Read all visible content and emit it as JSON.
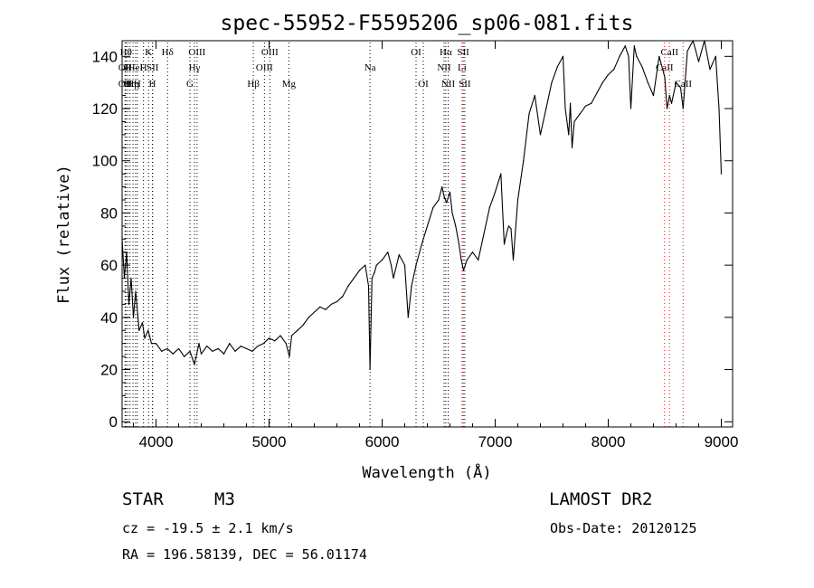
{
  "chart_data": {
    "type": "line",
    "title": "spec-55952-F5595206_sp06-081.fits",
    "xlabel": "Wavelength (Å)",
    "ylabel": "Flux (relative)",
    "xlim": [
      3700,
      9100
    ],
    "ylim": [
      -2,
      146
    ],
    "xticks": [
      4000,
      5000,
      6000,
      7000,
      8000,
      9000
    ],
    "yticks": [
      0,
      20,
      40,
      60,
      80,
      100,
      120,
      140
    ],
    "grid": false,
    "series": [
      {
        "x": [
          3700,
          3720,
          3740,
          3760,
          3780,
          3800,
          3820,
          3850,
          3880,
          3900,
          3930,
          3960,
          4000,
          4050,
          4100,
          4150,
          4200,
          4250,
          4300,
          4340,
          4380,
          4400,
          4450,
          4500,
          4550,
          4600,
          4650,
          4700,
          4750,
          4800,
          4850,
          4900,
          4950,
          5000,
          5050,
          5100,
          5150,
          5180,
          5200,
          5250,
          5300,
          5350,
          5400,
          5450,
          5500,
          5550,
          5600,
          5650,
          5700,
          5750,
          5800,
          5850,
          5880,
          5893,
          5910,
          5930,
          5950,
          6000,
          6050,
          6080,
          6100,
          6150,
          6200,
          6230,
          6260,
          6300,
          6350,
          6400,
          6450,
          6500,
          6530,
          6550,
          6570,
          6600,
          6620,
          6650,
          6680,
          6700,
          6720,
          6750,
          6800,
          6850,
          6900,
          6950,
          7000,
          7050,
          7080,
          7100,
          7120,
          7140,
          7160,
          7200,
          7250,
          7300,
          7350,
          7400,
          7450,
          7500,
          7550,
          7600,
          7620,
          7650,
          7665,
          7680,
          7700,
          7750,
          7800,
          7850,
          7900,
          7950,
          8000,
          8050,
          8100,
          8150,
          8180,
          8200,
          8230,
          8250,
          8300,
          8350,
          8400,
          8450,
          8500,
          8520,
          8542,
          8560,
          8600,
          8640,
          8662,
          8700,
          8750,
          8800,
          8850,
          8900,
          8950,
          8980,
          9000
        ],
        "y": [
          70,
          55,
          65,
          45,
          55,
          40,
          50,
          35,
          38,
          32,
          35,
          30,
          30,
          27,
          28,
          26,
          28,
          25,
          27,
          22,
          30,
          26,
          29,
          27,
          28,
          26,
          30,
          27,
          29,
          28,
          27,
          29,
          30,
          32,
          31,
          33,
          30,
          25,
          33,
          35,
          37,
          40,
          42,
          44,
          43,
          45,
          46,
          48,
          52,
          55,
          58,
          60,
          52,
          20,
          55,
          57,
          60,
          62,
          65,
          60,
          55,
          64,
          60,
          40,
          52,
          60,
          68,
          75,
          82,
          85,
          90,
          86,
          84,
          88,
          80,
          75,
          68,
          62,
          58,
          62,
          65,
          62,
          72,
          82,
          88,
          95,
          68,
          72,
          75,
          74,
          62,
          85,
          100,
          118,
          125,
          110,
          120,
          130,
          136,
          140,
          120,
          110,
          122,
          105,
          115,
          118,
          121,
          122,
          126,
          130,
          133,
          135,
          140,
          144,
          140,
          120,
          144,
          140,
          136,
          130,
          125,
          140,
          132,
          120,
          125,
          122,
          130,
          128,
          120,
          142,
          148,
          138,
          150,
          135,
          140,
          120,
          95
        ],
        "color": "#000000"
      }
    ],
    "lines": [
      {
        "w": 3734,
        "label": "Hθ",
        "row": 0,
        "color": "#000000"
      },
      {
        "w": 3727,
        "label": "OII",
        "row": 1,
        "color": "#000000"
      },
      {
        "w": 3727,
        "label": "OII",
        "row": 2,
        "color": "#000000"
      },
      {
        "w": 3750,
        "label": "H",
        "row": 1,
        "color": "#000000"
      },
      {
        "w": 3770,
        "label": "Hη",
        "row": 2,
        "color": "#000000"
      },
      {
        "w": 3797,
        "label": "Hη",
        "row": 2,
        "color": "#000000"
      },
      {
        "w": 3819,
        "label": "HeI",
        "row": 1,
        "color": "#000000"
      },
      {
        "w": 3835,
        "label": "H",
        "row": 2,
        "color": "#000000"
      },
      {
        "w": 3889,
        "label": "H",
        "row": 1,
        "color": "#000000"
      },
      {
        "w": 3934,
        "label": "K",
        "row": 0,
        "color": "#000000"
      },
      {
        "w": 3970,
        "label": "SII",
        "row": 1,
        "color": "#000000"
      },
      {
        "w": 3968,
        "label": "H",
        "row": 2,
        "color": "#000000"
      },
      {
        "w": 4102,
        "label": "Hδ",
        "row": 0,
        "color": "#000000"
      },
      {
        "w": 4300,
        "label": "G",
        "row": 2,
        "color": "#000000"
      },
      {
        "w": 4340,
        "label": "Hγ",
        "row": 1,
        "color": "#000000"
      },
      {
        "w": 4363,
        "label": "OIII",
        "row": 0,
        "color": "#000000"
      },
      {
        "w": 4861,
        "label": "Hβ",
        "row": 2,
        "color": "#000000"
      },
      {
        "w": 4959,
        "label": "OIII",
        "row": 1,
        "color": "#000000"
      },
      {
        "w": 5007,
        "label": "OIII",
        "row": 0,
        "color": "#000000"
      },
      {
        "w": 5175,
        "label": "Mg",
        "row": 2,
        "color": "#000000"
      },
      {
        "w": 5893,
        "label": "Na",
        "row": 1,
        "color": "#000000"
      },
      {
        "w": 6300,
        "label": "OI",
        "row": 0,
        "color": "#000000"
      },
      {
        "w": 6364,
        "label": "OI",
        "row": 2,
        "color": "#000000"
      },
      {
        "w": 6548,
        "label": "NII",
        "row": 1,
        "color": "#000000"
      },
      {
        "w": 6563,
        "label": "Hα",
        "row": 0,
        "color": "#000000"
      },
      {
        "w": 6584,
        "label": "NII",
        "row": 2,
        "color": "#000000"
      },
      {
        "w": 6707,
        "label": "Li",
        "row": 1,
        "color": "#ff0000"
      },
      {
        "w": 6717,
        "label": "SII",
        "row": 0,
        "color": "#000000"
      },
      {
        "w": 6731,
        "label": "SII",
        "row": 2,
        "color": "#000000"
      },
      {
        "w": 8498,
        "label": "CaII",
        "row": 1,
        "color": "#ff0000"
      },
      {
        "w": 8542,
        "label": "CaII",
        "row": 0,
        "color": "#ff0000"
      },
      {
        "w": 8662,
        "label": "CaII",
        "row": 2,
        "color": "#ff0000"
      }
    ]
  },
  "info": {
    "object_class": "STAR",
    "subclass": "M3",
    "survey": "LAMOST DR2",
    "cz": "cz = -19.5 ± 2.1 km/s",
    "obs_date": "Obs-Date: 20120125",
    "radec": "RA = 196.58139, DEC =  56.01174"
  }
}
